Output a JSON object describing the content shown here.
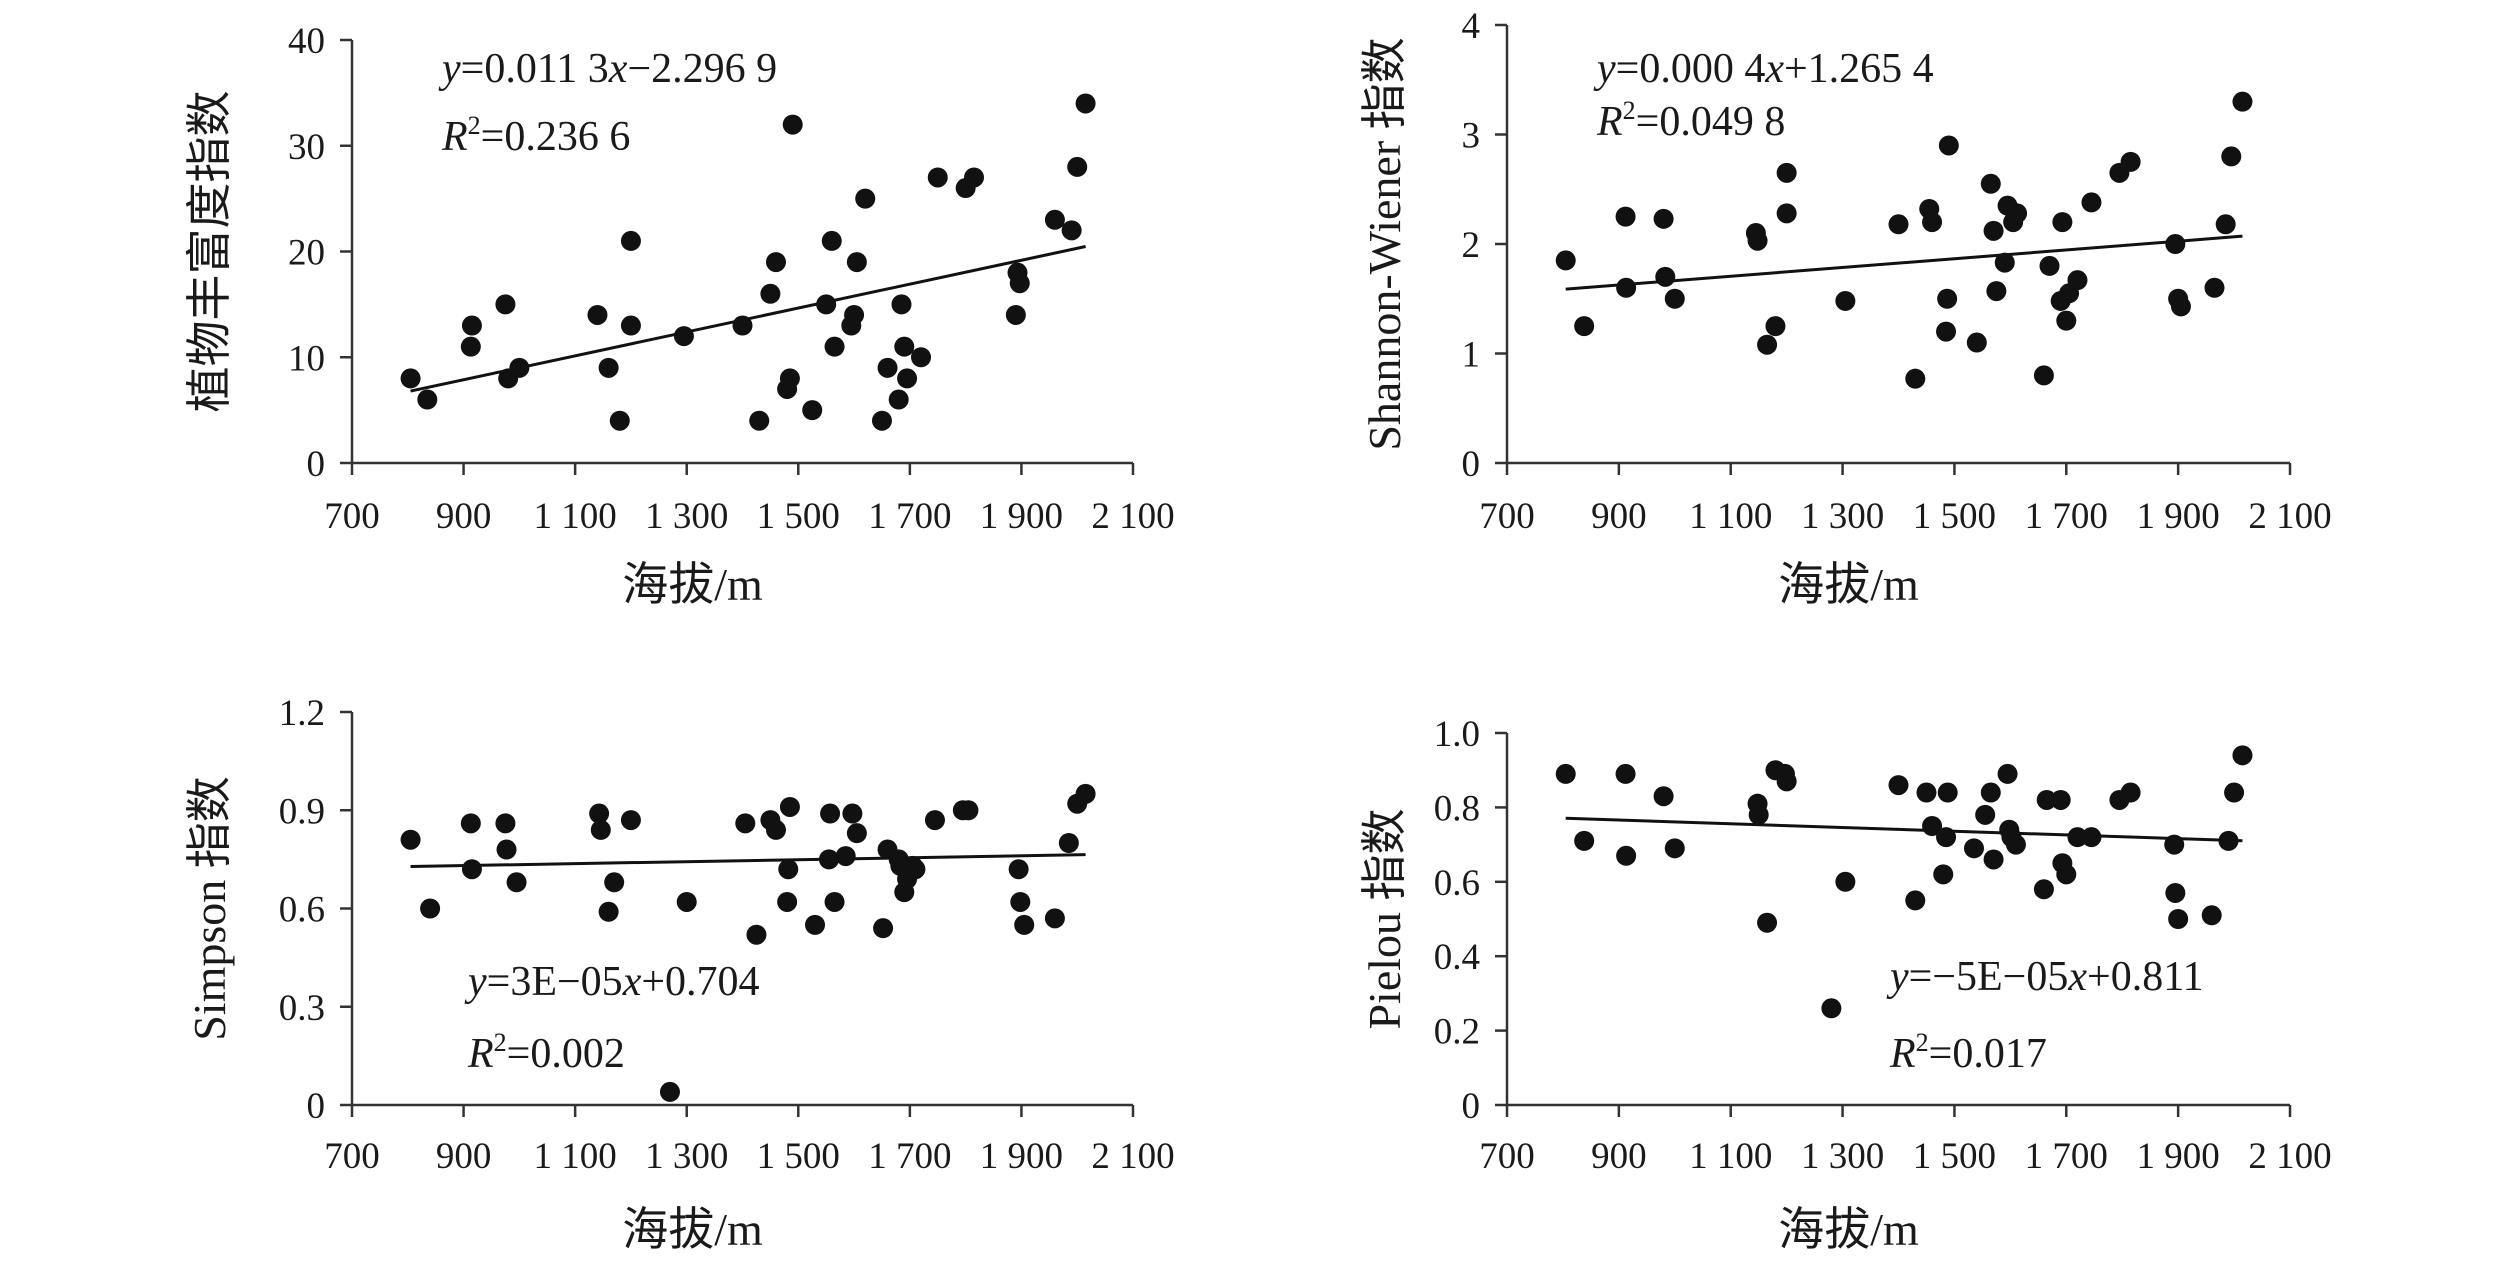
{
  "chart_data": [
    {
      "type": "scatter",
      "xlabel": "海拔/m",
      "ylabel": "植物丰富度指数",
      "xlim": [
        700,
        2100
      ],
      "ylim": [
        0,
        40
      ],
      "xticks": [
        700,
        900,
        1100,
        1300,
        1500,
        1700,
        1900,
        2100
      ],
      "xtick_labels": [
        "700",
        "900",
        "1 100",
        "1 300",
        "1 500",
        "1 700",
        "1 900",
        "2 100"
      ],
      "yticks": [
        0,
        10,
        20,
        30,
        40
      ],
      "ytick_labels": [
        "0",
        "10",
        "20",
        "30",
        "40"
      ],
      "equation": {
        "y": "y",
        "eq": "=0.011 3",
        "x": "x",
        "rest": "−2.296 9"
      },
      "r2": {
        "r": "R",
        "sup": "2",
        "val": "=0.236 6"
      },
      "trend": {
        "slope": 0.0113,
        "intercept": -2.2969,
        "x_from": 805,
        "x_to": 2015
      },
      "series": [
        {
          "x": [
            805,
            835,
            913,
            915,
            975,
            980,
            1000,
            1140,
            1160,
            1180,
            1200,
            1200,
            1295,
            1400,
            1430,
            1450,
            1460,
            1480,
            1485,
            1490,
            1525,
            1550,
            1560,
            1565,
            1595,
            1600,
            1605,
            1620,
            1650,
            1660,
            1680,
            1685,
            1690,
            1695,
            1720,
            1750,
            1800,
            1815,
            1890,
            1893,
            1897,
            1960,
            1990,
            2000,
            2015
          ],
          "y": [
            8,
            6,
            11,
            13,
            15,
            8,
            9,
            14,
            9,
            4,
            21,
            13,
            12,
            13,
            4,
            16,
            19,
            7,
            8,
            32,
            5,
            15,
            21,
            11,
            13,
            14,
            19,
            25,
            4,
            9,
            6,
            15,
            11,
            8,
            10,
            27,
            26,
            27,
            14,
            18,
            17,
            23,
            22,
            28,
            34
          ]
        }
      ]
    },
    {
      "type": "scatter",
      "xlabel": "海拔/m",
      "ylabel": "Shannon-Wiener 指数",
      "xlim": [
        700,
        2100
      ],
      "ylim": [
        0,
        4
      ],
      "xticks": [
        700,
        900,
        1100,
        1300,
        1500,
        1700,
        1900,
        2100
      ],
      "xtick_labels": [
        "700",
        "900",
        "1 100",
        "1 300",
        "1 500",
        "1 700",
        "1 900",
        "2 100"
      ],
      "yticks": [
        0,
        1,
        2,
        3,
        4
      ],
      "ytick_labels": [
        "0",
        "1",
        "2",
        "3",
        "4"
      ],
      "equation": {
        "y": "y",
        "eq": "=0.000 4",
        "x": "x",
        "rest": "+1.265 4"
      },
      "r2": {
        "r": "R",
        "sup": "2",
        "val": "=0.049 8"
      },
      "trend": {
        "slope": 0.0004,
        "intercept": 1.2654,
        "x_from": 805,
        "x_to": 2015
      },
      "series": [
        {
          "x": [
            805,
            838,
            912,
            913,
            980,
            983,
            1000,
            1145,
            1148,
            1165,
            1180,
            1200,
            1200,
            1305,
            1400,
            1430,
            1455,
            1460,
            1485,
            1487,
            1490,
            1540,
            1565,
            1570,
            1575,
            1590,
            1595,
            1605,
            1612,
            1660,
            1670,
            1690,
            1693,
            1700,
            1705,
            1720,
            1745,
            1795,
            1815,
            1895,
            1900,
            1905,
            1965,
            1985,
            1995,
            2015
          ],
          "y": [
            1.85,
            1.25,
            2.25,
            1.6,
            2.23,
            1.7,
            1.5,
            2.1,
            2.03,
            1.08,
            1.25,
            2.65,
            2.28,
            1.48,
            2.18,
            0.77,
            2.32,
            2.2,
            1.2,
            1.5,
            2.9,
            1.1,
            2.55,
            2.12,
            1.57,
            1.83,
            2.35,
            2.2,
            2.28,
            0.8,
            1.8,
            1.48,
            2.2,
            1.3,
            1.55,
            1.67,
            2.38,
            2.65,
            2.75,
            2.0,
            1.5,
            1.43,
            1.6,
            2.18,
            2.8,
            3.3
          ]
        }
      ]
    },
    {
      "type": "scatter",
      "xlabel": "海拔/m",
      "ylabel": "Simpson 指数",
      "xlim": [
        700,
        2100
      ],
      "ylim": [
        0,
        1.2
      ],
      "xticks": [
        700,
        900,
        1100,
        1300,
        1500,
        1700,
        1900,
        2100
      ],
      "xtick_labels": [
        "700",
        "900",
        "1 100",
        "1 300",
        "1 500",
        "1 700",
        "1 900",
        "2 100"
      ],
      "yticks": [
        0,
        0.3,
        0.6,
        0.9,
        1.2
      ],
      "ytick_labels": [
        "0",
        "0.3",
        "0.6",
        "0.9",
        "1.2"
      ],
      "equation": {
        "y": "y",
        "eq": "=3E−05",
        "x": "x",
        "rest": "+0.704"
      },
      "r2": {
        "r": "R",
        "sup": "2",
        "val": "=0.002"
      },
      "trend": {
        "slope": 3e-05,
        "intercept": 0.704,
        "x_from": 805,
        "x_to": 2015
      },
      "series": [
        {
          "x": [
            805,
            840,
            913,
            915,
            975,
            977,
            995,
            1143,
            1146,
            1160,
            1170,
            1200,
            1270,
            1300,
            1405,
            1425,
            1450,
            1460,
            1480,
            1482,
            1485,
            1530,
            1555,
            1557,
            1565,
            1585,
            1597,
            1605,
            1652,
            1660,
            1680,
            1683,
            1690,
            1695,
            1705,
            1710,
            1745,
            1795,
            1805,
            1895,
            1898,
            1905,
            1960,
            1985,
            2000,
            2015
          ],
          "y": [
            0.81,
            0.6,
            0.86,
            0.72,
            0.86,
            0.78,
            0.68,
            0.89,
            0.84,
            0.59,
            0.68,
            0.87,
            0.04,
            0.62,
            0.86,
            0.52,
            0.87,
            0.84,
            0.62,
            0.72,
            0.91,
            0.55,
            0.75,
            0.89,
            0.62,
            0.76,
            0.89,
            0.83,
            0.54,
            0.78,
            0.75,
            0.73,
            0.65,
            0.69,
            0.73,
            0.72,
            0.87,
            0.9,
            0.9,
            0.72,
            0.62,
            0.55,
            0.57,
            0.8,
            0.92,
            0.95
          ]
        }
      ]
    },
    {
      "type": "scatter",
      "xlabel": "海拔/m",
      "ylabel": "Pielou 指数",
      "xlim": [
        700,
        2100
      ],
      "ylim": [
        0,
        1.0
      ],
      "xticks": [
        700,
        900,
        1100,
        1300,
        1500,
        1700,
        1900,
        2100
      ],
      "xtick_labels": [
        "700",
        "900",
        "1 100",
        "1 300",
        "1 500",
        "1 700",
        "1 900",
        "2 100"
      ],
      "yticks": [
        0,
        0.2,
        0.4,
        0.6,
        0.8,
        1.0
      ],
      "ytick_labels": [
        "0",
        "0.2",
        "0.4",
        "0.6",
        "0.8",
        "1.0"
      ],
      "equation": {
        "y": "y",
        "eq": "=−5E−05",
        "x": "x",
        "rest": "+0.811"
      },
      "r2": {
        "r": "R",
        "sup": "2",
        "val": "=0.017"
      },
      "trend": {
        "slope": -5e-05,
        "intercept": 0.811,
        "x_from": 805,
        "x_to": 2015
      },
      "series": [
        {
          "x": [
            805,
            838,
            912,
            913,
            980,
            1000,
            1148,
            1150,
            1165,
            1180,
            1197,
            1200,
            1280,
            1305,
            1400,
            1430,
            1450,
            1460,
            1480,
            1485,
            1488,
            1535,
            1555,
            1565,
            1570,
            1595,
            1598,
            1602,
            1610,
            1660,
            1665,
            1690,
            1693,
            1700,
            1720,
            1745,
            1795,
            1815,
            1893,
            1895,
            1900,
            1960,
            1990,
            2000,
            2015
          ],
          "y": [
            0.89,
            0.71,
            0.89,
            0.67,
            0.83,
            0.69,
            0.81,
            0.78,
            0.49,
            0.9,
            0.89,
            0.87,
            0.26,
            0.6,
            0.86,
            0.55,
            0.84,
            0.75,
            0.62,
            0.72,
            0.84,
            0.69,
            0.78,
            0.84,
            0.66,
            0.89,
            0.74,
            0.72,
            0.7,
            0.58,
            0.82,
            0.82,
            0.65,
            0.62,
            0.72,
            0.72,
            0.82,
            0.84,
            0.7,
            0.57,
            0.5,
            0.51,
            0.71,
            0.84,
            0.94
          ]
        }
      ]
    }
  ]
}
